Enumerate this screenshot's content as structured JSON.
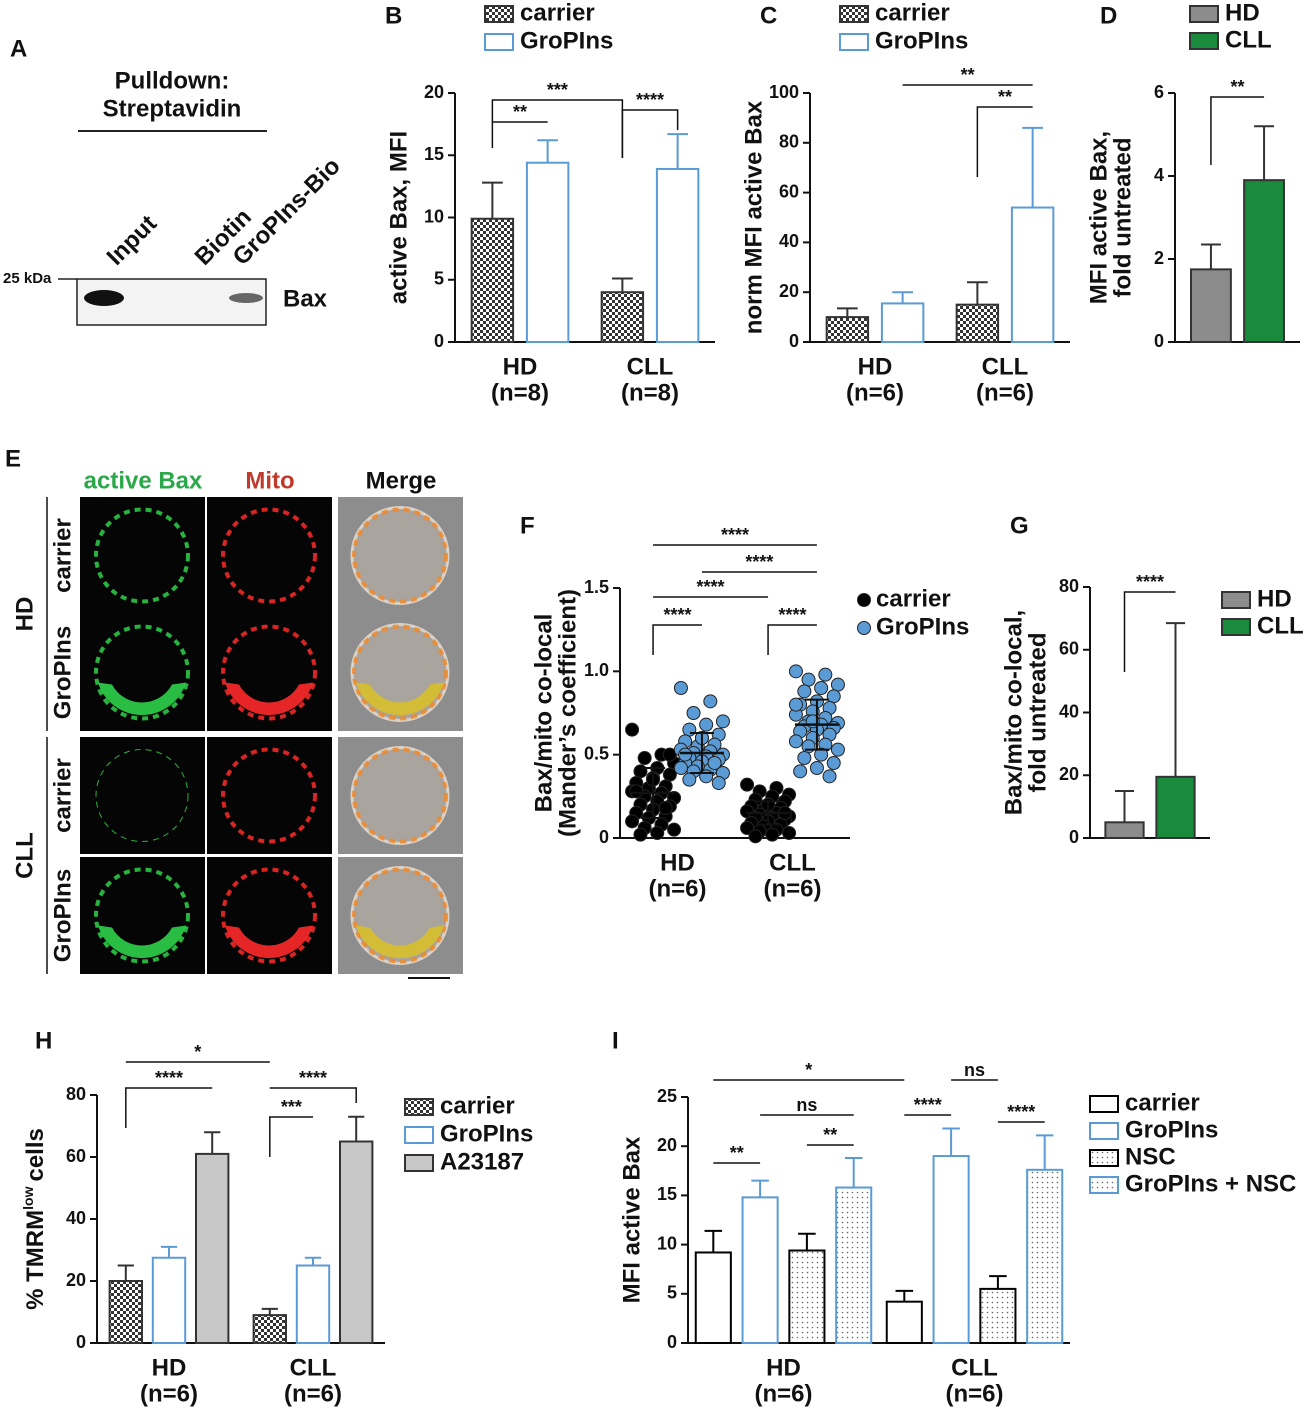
{
  "panel_labels": [
    "A",
    "B",
    "C",
    "D",
    "E",
    "F",
    "G",
    "H",
    "I"
  ],
  "blot": {
    "title": [
      "Pulldown:",
      "Streptavidin"
    ],
    "lanes": [
      "Input",
      "Biotin",
      "GroPIns-Bio"
    ],
    "marker": "25 kDa",
    "protein": "Bax"
  },
  "microscopy": {
    "columns": [
      "active Bax",
      "Mito",
      "Merge"
    ],
    "groups": [
      {
        "name": "HD",
        "rows": [
          "carrier",
          "GroPIns"
        ]
      },
      {
        "name": "CLL",
        "rows": [
          "carrier",
          "GroPIns"
        ]
      }
    ]
  },
  "chart_data": [
    {
      "type": "bar",
      "ylabel": "active Bax, MFI",
      "categories": [
        "HD",
        "CLL"
      ],
      "category_notes": [
        "(n=8)",
        "(n=8)"
      ],
      "series": [
        {
          "name": "carrier",
          "color": "#333333",
          "pattern": "checker",
          "values": [
            9.9,
            4.0
          ],
          "errors": [
            2.9,
            1.1
          ]
        },
        {
          "name": "GroPIns",
          "color": "#5b9bd5",
          "pattern": "outline",
          "values": [
            14.4,
            13.9
          ],
          "errors": [
            1.8,
            2.8
          ]
        }
      ],
      "ylim": [
        0,
        20
      ],
      "yticks": [
        0,
        5,
        10,
        15,
        20
      ],
      "annotations": [
        "**",
        "***",
        "****"
      ]
    },
    {
      "type": "bar",
      "ylabel": "norm MFI active Bax",
      "categories": [
        "HD",
        "CLL"
      ],
      "category_notes": [
        "(n=6)",
        "(n=6)"
      ],
      "series": [
        {
          "name": "carrier",
          "color": "#333333",
          "pattern": "checker",
          "values": [
            10,
            15
          ],
          "errors": [
            3.5,
            9
          ]
        },
        {
          "name": "GroPIns",
          "color": "#5b9bd5",
          "pattern": "outline",
          "values": [
            15.5,
            54
          ],
          "errors": [
            4.5,
            32
          ]
        }
      ],
      "ylim": [
        0,
        100
      ],
      "yticks": [
        0,
        20,
        40,
        60,
        80,
        100
      ],
      "annotations": [
        "**",
        "**"
      ]
    },
    {
      "type": "bar",
      "ylabel": [
        "MFI active Bax,",
        "fold untreated"
      ],
      "categories": [
        null
      ],
      "series": [
        {
          "name": "HD",
          "color": "#8c8c8c",
          "pattern": "solid",
          "values": [
            1.75
          ],
          "errors": [
            0.6
          ]
        },
        {
          "name": "CLL",
          "color": "#1a8a3c",
          "pattern": "solid",
          "values": [
            3.9
          ],
          "errors": [
            1.3
          ]
        }
      ],
      "ylim": [
        0,
        6
      ],
      "yticks": [
        0,
        2,
        4,
        6
      ],
      "annotations": [
        "**"
      ]
    },
    {
      "type": "strip",
      "ylabel": [
        "Bax/mito co-local",
        "(Mander’s coefficient)"
      ],
      "categories": [
        "HD",
        "CLL"
      ],
      "category_notes": [
        "(n=6)",
        "(n=6)"
      ],
      "series": [
        {
          "name": "carrier",
          "color": "#000000",
          "values": [
            [
              0.65,
              0.5,
              0.48,
              0.45,
              0.42,
              0.4,
              0.38,
              0.36,
              0.33,
              0.31,
              0.3,
              0.28,
              0.27,
              0.25,
              0.24,
              0.22,
              0.2,
              0.19,
              0.17,
              0.15,
              0.13,
              0.12,
              0.1,
              0.08,
              0.06,
              0.05,
              0.03,
              0.02,
              0.5,
              0.35,
              0.28,
              0.18
            ],
            [
              0.32,
              0.3,
              0.28,
              0.26,
              0.25,
              0.23,
              0.22,
              0.2,
              0.19,
              0.18,
              0.17,
              0.16,
              0.15,
              0.14,
              0.13,
              0.12,
              0.12,
              0.11,
              0.1,
              0.09,
              0.08,
              0.07,
              0.06,
              0.05,
              0.04,
              0.03,
              0.02,
              0.01,
              0.15,
              0.2
            ]
          ],
          "means": [
            0.27,
            0.15
          ],
          "sds": [
            0.15,
            0.07
          ]
        },
        {
          "name": "GroPIns",
          "color": "#5b9bd5",
          "values": [
            [
              0.9,
              0.82,
              0.75,
              0.7,
              0.68,
              0.65,
              0.62,
              0.6,
              0.58,
              0.56,
              0.55,
              0.53,
              0.52,
              0.51,
              0.5,
              0.49,
              0.48,
              0.47,
              0.46,
              0.45,
              0.44,
              0.43,
              0.42,
              0.41,
              0.4,
              0.39,
              0.37,
              0.35,
              0.33,
              0.6,
              0.5,
              0.45
            ],
            [
              1.0,
              0.98,
              0.95,
              0.92,
              0.9,
              0.88,
              0.85,
              0.82,
              0.8,
              0.78,
              0.76,
              0.74,
              0.72,
              0.7,
              0.69,
              0.68,
              0.67,
              0.66,
              0.65,
              0.64,
              0.62,
              0.6,
              0.58,
              0.56,
              0.55,
              0.53,
              0.5,
              0.48,
              0.45,
              0.42,
              0.4,
              0.37,
              0.7,
              0.8
            ]
          ],
          "means": [
            0.51,
            0.68
          ],
          "sds": [
            0.12,
            0.15
          ]
        }
      ],
      "ylim": [
        0,
        1.5
      ],
      "yticks": [
        0,
        0.5,
        {
          "value": 1,
          "label": "1.0"
        },
        1.5
      ],
      "annotations": [
        "****",
        "****",
        "****",
        "****",
        "****"
      ]
    },
    {
      "type": "bar",
      "ylabel": [
        "Bax/mito co-local,",
        "fold untreated"
      ],
      "categories": [
        null
      ],
      "series": [
        {
          "name": "HD",
          "color": "#8c8c8c",
          "pattern": "solid",
          "values": [
            5
          ],
          "errors": [
            10
          ]
        },
        {
          "name": "CLL",
          "color": "#1a8a3c",
          "pattern": "solid",
          "values": [
            19.5
          ],
          "errors": [
            49
          ]
        }
      ],
      "ylim": [
        0,
        80
      ],
      "yticks": [
        0,
        20,
        40,
        60,
        80
      ],
      "annotations": [
        "****"
      ]
    },
    {
      "type": "bar",
      "ylabel": {
        "main": "% TMRM",
        "sup": "low",
        "rest": "cells"
      },
      "categories": [
        "HD",
        "CLL"
      ],
      "category_notes": [
        "(n=6)",
        "(n=6)"
      ],
      "series": [
        {
          "name": "carrier",
          "color": "#333333",
          "pattern": "checker",
          "values": [
            20,
            9
          ],
          "errors": [
            5,
            2
          ]
        },
        {
          "name": "GroPIns",
          "color": "#5b9bd5",
          "pattern": "outline",
          "values": [
            27.5,
            25
          ],
          "errors": [
            3.5,
            2.5
          ]
        },
        {
          "name": "A23187",
          "color": "#c8c8c8",
          "pattern": "solid",
          "values": [
            61,
            65
          ],
          "errors": [
            7,
            8
          ]
        }
      ],
      "ylim": [
        0,
        80
      ],
      "yticks": [
        0,
        20,
        40,
        60,
        80
      ],
      "annotations": [
        "*",
        "****",
        "****",
        "***"
      ]
    },
    {
      "type": "bar",
      "ylabel": "MFI active Bax",
      "categories": [
        "HD",
        "CLL"
      ],
      "category_notes": [
        "(n=6)",
        "(n=6)"
      ],
      "series": [
        {
          "name": "carrier",
          "color": "#000000",
          "pattern": "outline",
          "values": [
            9.2,
            4.2
          ],
          "errors": [
            2.2,
            1.1
          ]
        },
        {
          "name": "GroPIns",
          "color": "#5b9bd5",
          "pattern": "outline",
          "values": [
            14.8,
            19
          ],
          "errors": [
            1.7,
            2.8
          ]
        },
        {
          "name": "NSC",
          "color": "#000000",
          "pattern": "dots",
          "values": [
            9.4,
            5.5
          ],
          "errors": [
            1.7,
            1.3
          ]
        },
        {
          "name": "GroPIns + NSC",
          "color": "#5b9bd5",
          "pattern": "dots",
          "values": [
            15.8,
            17.6
          ],
          "errors": [
            3,
            3.5
          ]
        }
      ],
      "ylim": [
        0,
        25
      ],
      "yticks": [
        0,
        5,
        10,
        15,
        20,
        25
      ],
      "annotations": [
        "*",
        "ns",
        "ns",
        "**",
        "**",
        "****",
        "****"
      ]
    }
  ]
}
